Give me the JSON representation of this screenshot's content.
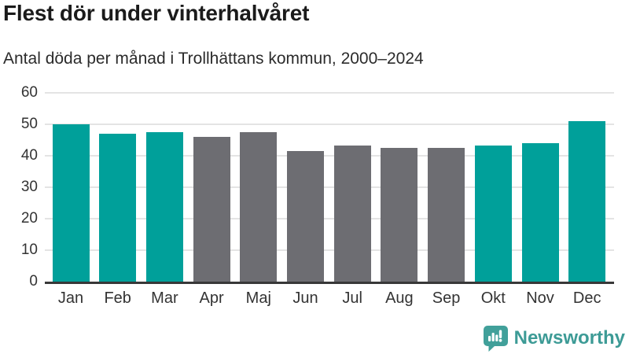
{
  "header": {
    "title": "Flest dör under vinterhalvåret",
    "subtitle": "Antal döda per månad i Trollhättans kommun, 2000–2024"
  },
  "chart_data": {
    "type": "bar",
    "title": "Flest dör under vinterhalvåret",
    "subtitle": "Antal döda per månad i Trollhättans kommun, 2000–2024",
    "categories": [
      "Jan",
      "Feb",
      "Mar",
      "Apr",
      "Maj",
      "Jun",
      "Jul",
      "Aug",
      "Sep",
      "Okt",
      "Nov",
      "Dec"
    ],
    "values": [
      50.1,
      46.9,
      47.6,
      46.1,
      47.6,
      41.6,
      43.3,
      42.5,
      42.5,
      43.3,
      44.1,
      51.0
    ],
    "highlighted_categories": [
      "Jan",
      "Feb",
      "Mar",
      "Okt",
      "Nov",
      "Dec"
    ],
    "palette": {
      "highlight": "#00a09a",
      "base": "#6d6d72",
      "gridline": "#e4e4e4",
      "axis_line": "#383838",
      "tick_text": "#333333"
    },
    "xlabel": "",
    "ylabel": "",
    "ylim": [
      0,
      60
    ],
    "yticks": [
      0,
      10,
      20,
      30,
      40,
      50,
      60
    ],
    "grid": true,
    "legend": false
  },
  "footer": {
    "brand": "Newsworthy",
    "brand_color": "#3d9b96",
    "logo_icon": "bar-chart-speech-bubble"
  }
}
